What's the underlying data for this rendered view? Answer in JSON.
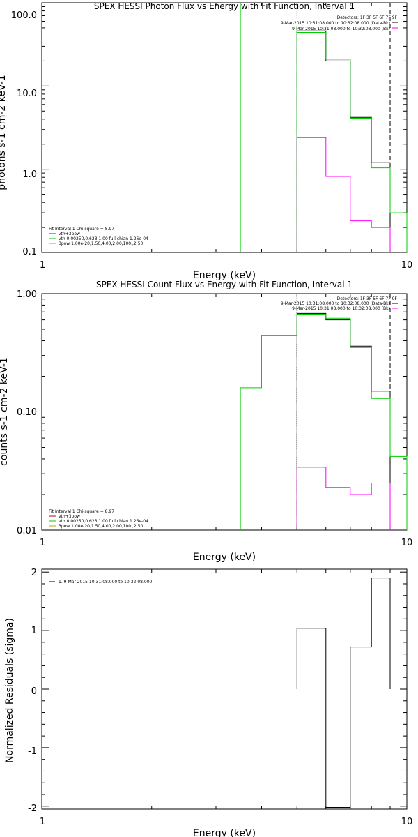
{
  "chart_data": [
    {
      "type": "line",
      "title": "SPEX HESSI Photon Flux vs Energy with Fit Function, Interval 1",
      "xlabel": "Energy (keV)",
      "ylabel": "photons s-1 cm-2 keV-1",
      "xscale": "log",
      "yscale": "log",
      "xlim": [
        1,
        10
      ],
      "ylim": [
        0.1,
        100
      ],
      "xticks": [
        "1",
        "10"
      ],
      "yticks": [
        "0.1",
        "1.0",
        "10.0",
        "100.0"
      ],
      "info_lines": [
        "Detectors: 1F 3F 5F 6F 7F 9F",
        "9-Mar-2015 10:31:08.000 to 10:32:08.000 (Data-Bk)",
        "9-Mar-2015 10:31:08.000 to 10:32:08.000 (Bk)"
      ],
      "legend": [
        "Fit Interval 1    Chi-square = 8.97",
        "vth+3pow",
        "vth 0.00250,0.623,1.00  full chian 1.26e-04",
        "3pow 1.00e-20,1.50,4.00,2.00,100.,2.50"
      ],
      "series": [
        {
          "name": "Data-Bk",
          "color": "#000000",
          "edges": [
            5,
            6,
            7,
            8,
            9
          ],
          "values": [
            46,
            20,
            4.2,
            1.2
          ]
        },
        {
          "name": "Bk",
          "color": "#ff00ff",
          "edges": [
            5,
            6,
            7,
            8,
            9
          ],
          "values": [
            2.4,
            0.82,
            0.24,
            0.2
          ]
        },
        {
          "name": "vth+3pow",
          "color": "#00cc00",
          "edges": [
            5,
            6,
            7,
            8,
            9,
            10
          ],
          "values": [
            44,
            21,
            4.1,
            1.04,
            0.3
          ]
        }
      ],
      "vlines": [
        {
          "x": 3.5,
          "color": "#00cc00",
          "style": "solid"
        },
        {
          "x": 5,
          "color": "#00cc00",
          "style": "dotted"
        },
        {
          "x": 9,
          "color": "#000000",
          "style": "dashed"
        }
      ]
    },
    {
      "type": "line",
      "title": "SPEX HESSI Count Flux vs Energy with Fit Function, Interval 1",
      "xlabel": "Energy (keV)",
      "ylabel": "counts s-1 cm-2 keV-1",
      "xscale": "log",
      "yscale": "log",
      "xlim": [
        1,
        10
      ],
      "ylim": [
        0.01,
        1
      ],
      "xticks": [
        "1",
        "10"
      ],
      "yticks": [
        "0.01",
        "0.10",
        "1.00"
      ],
      "info_lines": [
        "Detectors: 1F 3F 5F 6F 7F 9F",
        "9-Mar-2015 10:31:08.000 to 10:32:08.000 (Data-Bk)",
        "9-Mar-2015 10:31:08.000 to 10:32:08.000 (Bk)"
      ],
      "legend": [
        "Fit Interval 1    Chi-square = 8.97",
        "vth+3pow",
        "vth 0.00250,0.623,1.00  full chian 1.26e-04",
        "3pow 1.00e-20,1.50,4.00,2.00,100.,2.50"
      ],
      "series": [
        {
          "name": "Data-Bk",
          "color": "#000000",
          "edges": [
            5,
            6,
            7,
            8,
            9
          ],
          "values": [
            0.68,
            0.6,
            0.36,
            0.15
          ]
        },
        {
          "name": "Bk",
          "color": "#ff00ff",
          "edges": [
            5,
            6,
            7,
            8,
            9
          ],
          "values": [
            0.034,
            0.023,
            0.02,
            0.025
          ]
        },
        {
          "name": "vth+3pow",
          "color": "#00cc00",
          "edges": [
            3.5,
            4,
            5,
            6,
            7,
            8,
            9,
            10
          ],
          "values": [
            0.16,
            0.44,
            0.67,
            0.62,
            0.35,
            0.13,
            0.042
          ]
        }
      ],
      "vlines": [
        {
          "x": 5,
          "color": "#000000",
          "style": "dotted"
        },
        {
          "x": 9,
          "color": "#000000",
          "style": "dashed"
        }
      ]
    },
    {
      "type": "line",
      "title": "",
      "xlabel": "Energy (keV)",
      "ylabel": "Normalized Residuals (sigma)",
      "xscale": "log",
      "yscale": "linear",
      "xlim": [
        1,
        10
      ],
      "ylim": [
        -2.05,
        2.05
      ],
      "xticks": [
        "1",
        "10"
      ],
      "yticks": [
        "-2",
        "-1",
        "0",
        "1",
        "2"
      ],
      "legend": [
        "1.  9-Mar-2015 10:31:08.000 to 10:32:08.000"
      ],
      "series": [
        {
          "name": "Residuals",
          "color": "#000000",
          "edges": [
            5,
            6,
            7,
            8,
            9
          ],
          "values": [
            1.04,
            -2.02,
            0.72,
            1.9
          ]
        }
      ]
    }
  ]
}
